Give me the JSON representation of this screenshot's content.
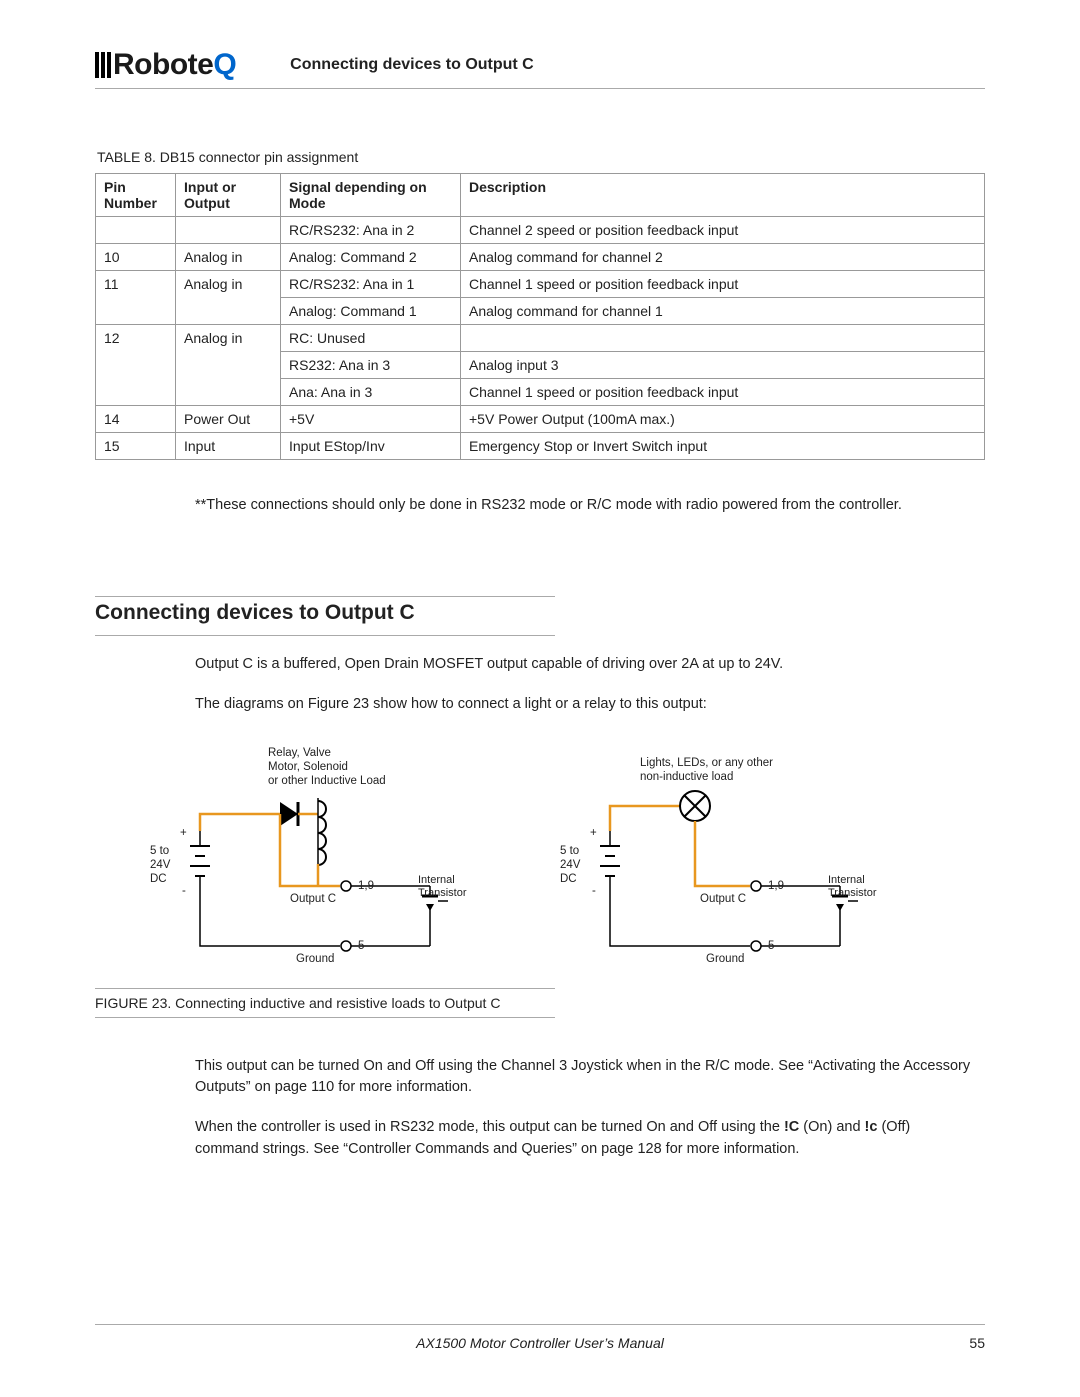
{
  "header": {
    "brand_prefix": "Robote",
    "brand_suffix": "Q",
    "title": "Connecting devices to Output C"
  },
  "table": {
    "caption_prefix": "TABLE 8. ",
    "caption": "DB15 connector pin assignment",
    "columns": [
      "Pin Number",
      "Input or Output",
      "Signal depending on Mode",
      "Description"
    ],
    "rows": [
      [
        "",
        "",
        "RC/RS232: Ana in 2",
        "Channel 2 speed or position feedback input"
      ],
      [
        "10",
        "Analog in",
        "Analog: Command 2",
        "Analog command for channel 2"
      ],
      [
        "11",
        "Analog in",
        "RC/RS232: Ana in 1",
        "Channel 1 speed or position feedback input"
      ],
      [
        "",
        "",
        "Analog: Command 1",
        "Analog command for channel 1"
      ],
      [
        "12",
        "Analog in",
        "RC: Unused",
        ""
      ],
      [
        "",
        "",
        "RS232: Ana in 3",
        "Analog input 3"
      ],
      [
        "",
        "",
        "Ana: Ana in 3",
        "Channel 1 speed or position feedback input"
      ],
      [
        "14",
        "Power Out",
        "+5V",
        "+5V Power Output (100mA max.)"
      ],
      [
        "15",
        "Input",
        "Input EStop/Inv",
        "Emergency Stop or Invert Switch input"
      ]
    ],
    "col_merge_spec": [
      [
        null,
        null,
        null,
        null
      ],
      [
        null,
        null,
        null,
        null
      ],
      [
        2,
        2,
        null,
        null
      ],
      [
        "skip",
        "skip",
        null,
        null
      ],
      [
        3,
        3,
        null,
        null
      ],
      [
        "skip",
        "skip",
        null,
        null
      ],
      [
        "skip",
        "skip",
        null,
        null
      ],
      [
        null,
        null,
        null,
        null
      ],
      [
        null,
        null,
        null,
        null
      ]
    ]
  },
  "note_text": "**These connections should only be done in RS232 mode or R/C mode with radio powered from the controller.",
  "section": {
    "heading": "Connecting devices to Output C",
    "p1": "Output C is a buffered, Open Drain MOSFET output capable of driving over 2A at up to 24V.",
    "p2": "The diagrams on Figure 23 show how to connect a light or a relay to this output:"
  },
  "figure": {
    "caption": "FIGURE 23.  Connecting inductive and resistive loads to Output C",
    "left": {
      "load_label": "Relay, Valve\nMotor, Solenoid\nor other Inductive Load",
      "vlabel": "5 to\n24V\nDC",
      "plus": "+",
      "minus": "-",
      "output": "Output C",
      "pins_out": "1,9",
      "ground": "Ground",
      "pins_gnd": "5",
      "trans": "Internal\nTransistor"
    },
    "right": {
      "load_label": "Lights, LEDs, or any other\nnon-inductive load",
      "vlabel": "5 to\n24V\nDC",
      "plus": "+",
      "minus": "-",
      "output": "Output C",
      "pins_out": "1,9",
      "ground": "Ground",
      "pins_gnd": "5",
      "trans": "Internal\nTransistor"
    },
    "colors": {
      "wire_hot": "#e8971f",
      "wire": "#000000"
    }
  },
  "after_fig": {
    "p1": "This output can be turned On and Off using the Channel 3 Joystick when in the R/C mode. See “Activating the Accessory Outputs” on page 110 for more information.",
    "p2_a": "When the controller is used in RS232 mode, this output can be turned On and Off using the ",
    "p2_b": "!C",
    "p2_c": " (On) and ",
    "p2_d": "!c",
    "p2_e": " (Off) command strings. See “Controller Commands and Queries” on page 128 for more information."
  },
  "footer": {
    "text": "AX1500 Motor Controller User’s Manual",
    "page": "55"
  }
}
